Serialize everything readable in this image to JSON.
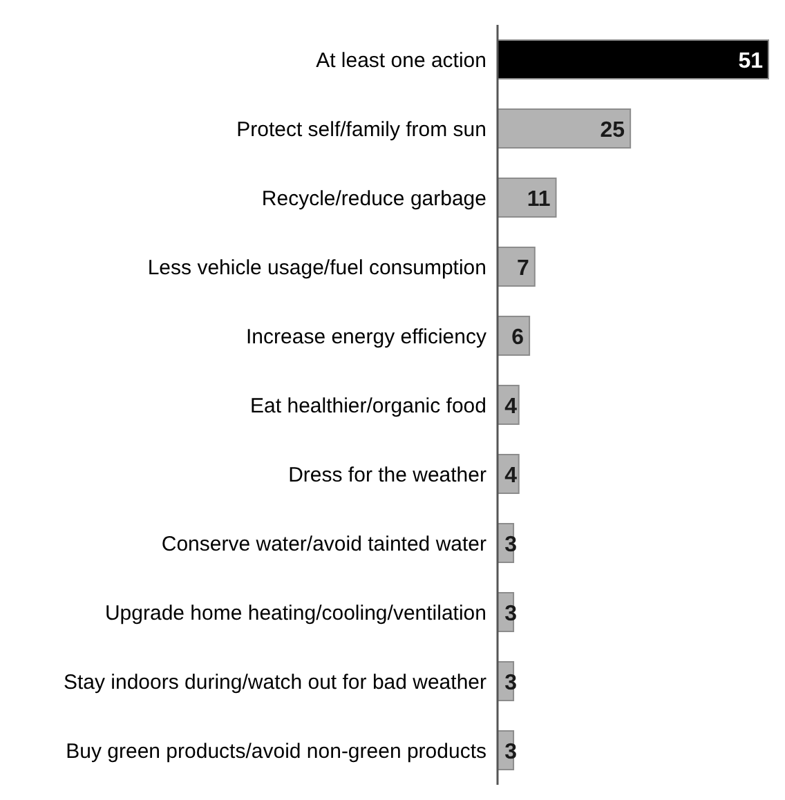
{
  "chart_data": {
    "type": "bar",
    "orientation": "horizontal",
    "categories": [
      "At least one action",
      "Protect self/family from sun",
      "Recycle/reduce garbage",
      "Less vehicle usage/fuel consumption",
      "Increase energy efficiency",
      "Eat healthier/organic food",
      "Dress for the weather",
      "Conserve water/avoid tainted water",
      "Upgrade home heating/cooling/ventilation",
      "Stay indoors during/watch out for bad weather",
      "Buy green products/avoid non-green products"
    ],
    "values": [
      51,
      25,
      11,
      7,
      6,
      4,
      4,
      3,
      3,
      3,
      3
    ],
    "colors": [
      "#000000",
      "#b3b3b3",
      "#b3b3b3",
      "#b3b3b3",
      "#b3b3b3",
      "#b3b3b3",
      "#b3b3b3",
      "#b3b3b3",
      "#b3b3b3",
      "#b3b3b3",
      "#b3b3b3"
    ],
    "data_labels": true,
    "grid": false,
    "legend": false
  }
}
